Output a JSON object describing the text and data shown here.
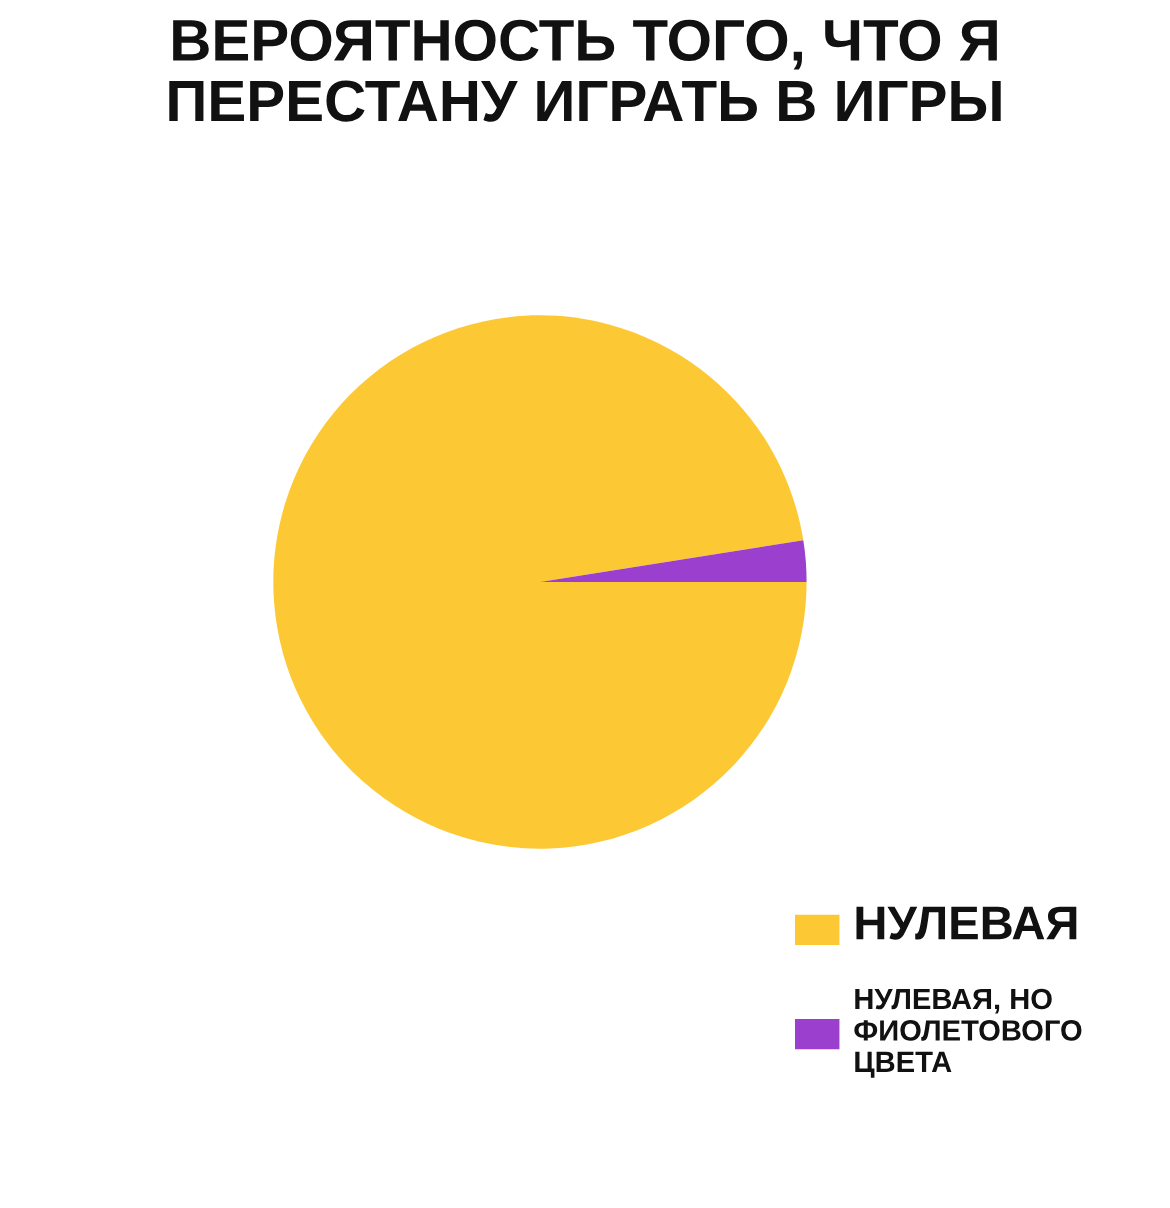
{
  "chart_data": {
    "type": "pie",
    "title": "ВЕРОЯТНОСТЬ ТОГО, ЧТО Я\nПЕРЕСТАНУ ИГРАТЬ В ИГРЫ",
    "categories": [
      "НУЛЕВАЯ",
      "НУЛЕВАЯ, НО\nФИОЛЕТОВОГО\nЦВЕТА"
    ],
    "values": [
      97.5,
      2.5
    ],
    "colors": [
      "#fcc934",
      "#9b3fcf"
    ],
    "legend": "bottom right"
  }
}
